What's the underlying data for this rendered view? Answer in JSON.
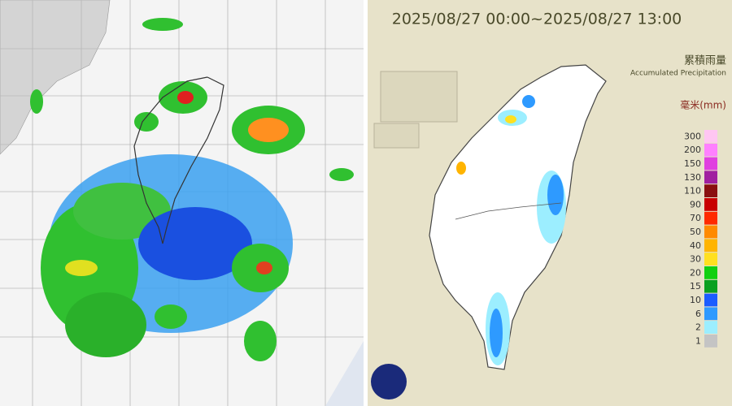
{
  "header": {
    "title": "2025/08/27 00:00~2025/08/27 13:00"
  },
  "legend": {
    "title": "累積雨量",
    "subtitle": "Accumulated Precipitation",
    "unit": "毫米(mm)",
    "entries": [
      {
        "label": "300",
        "color": "#ffc6f2"
      },
      {
        "label": "200",
        "color": "#ff80ff"
      },
      {
        "label": "150",
        "color": "#e040e0"
      },
      {
        "label": "130",
        "color": "#a020a0"
      },
      {
        "label": "110",
        "color": "#8a1010"
      },
      {
        "label": "90",
        "color": "#c80000"
      },
      {
        "label": "70",
        "color": "#ff2a00"
      },
      {
        "label": "50",
        "color": "#ff8a00"
      },
      {
        "label": "40",
        "color": "#ffb400"
      },
      {
        "label": "30",
        "color": "#ffe020"
      },
      {
        "label": "20",
        "color": "#10d010"
      },
      {
        "label": "15",
        "color": "#0aa020"
      },
      {
        "label": "10",
        "color": "#1a5cff"
      },
      {
        "label": "6",
        "color": "#2e9aff"
      },
      {
        "label": "2",
        "color": "#9ceeff"
      },
      {
        "label": "1",
        "color": "#c4c4c4"
      }
    ]
  }
}
